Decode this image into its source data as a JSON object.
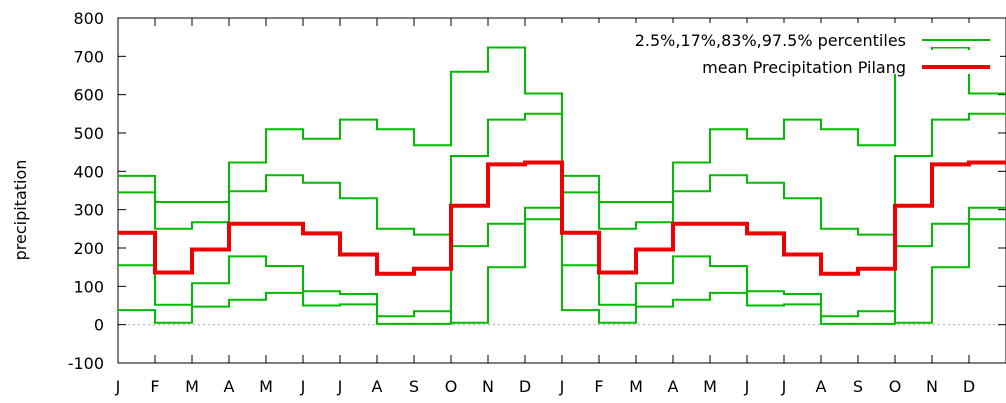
{
  "chart_data": {
    "type": "line",
    "step": true,
    "ylabel": "precipitation",
    "xlabel": "",
    "ylim": [
      -100,
      800
    ],
    "yticks": [
      -100,
      0,
      100,
      200,
      300,
      400,
      500,
      600,
      700,
      800
    ],
    "x_tick_labels": [
      "J",
      "F",
      "M",
      "A",
      "M",
      "J",
      "J",
      "A",
      "S",
      "O",
      "N",
      "D",
      "J",
      "F",
      "M",
      "A",
      "M",
      "J",
      "J",
      "A",
      "S",
      "O",
      "N",
      "D"
    ],
    "zero_line": true,
    "legend_position": "top-right",
    "colors": {
      "percentiles": "#00bb00",
      "mean": "#ee0000",
      "zero": "#aaaaaa"
    },
    "series": [
      {
        "name": "2.5%,17%,83%,97.5% percentiles",
        "role": "p2.5",
        "values": [
          38,
          5,
          47,
          65,
          83,
          50,
          53,
          22,
          35,
          5,
          150,
          275
        ]
      },
      {
        "name": "",
        "role": "p17",
        "values": [
          155,
          52,
          108,
          178,
          153,
          87,
          80,
          2,
          2,
          205,
          263,
          305
        ]
      },
      {
        "name": "",
        "role": "p83",
        "values": [
          345,
          250,
          267,
          348,
          390,
          370,
          330,
          250,
          235,
          440,
          535,
          550
        ]
      },
      {
        "name": "",
        "role": "p97.5",
        "values": [
          388,
          320,
          320,
          423,
          510,
          485,
          535,
          510,
          468,
          660,
          723,
          603
        ]
      },
      {
        "name": "mean Precipitation Pilang",
        "role": "mean",
        "values": [
          240,
          136,
          196,
          263,
          263,
          238,
          183,
          133,
          146,
          310,
          418,
          423
        ]
      }
    ]
  }
}
